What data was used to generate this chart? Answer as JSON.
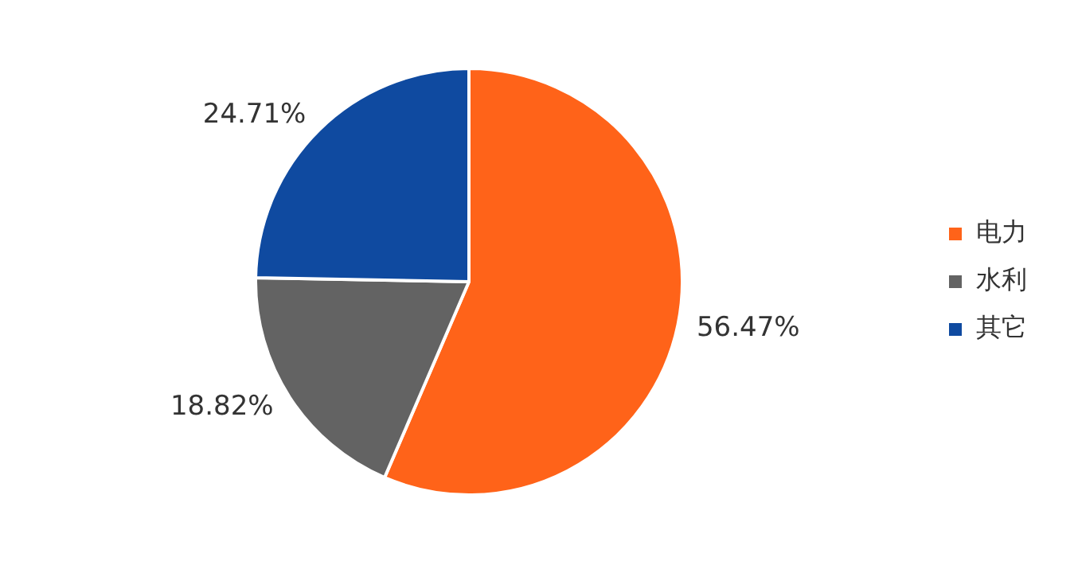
{
  "chart_data": {
    "type": "pie",
    "categories": [
      "电力",
      "水利",
      "其它"
    ],
    "values": [
      56.47,
      18.82,
      24.71
    ],
    "colors": [
      "#ff6319",
      "#636363",
      "#0f4aa0"
    ],
    "value_labels": [
      "56.47%",
      "18.82%",
      "24.71%"
    ],
    "legend": "right"
  }
}
